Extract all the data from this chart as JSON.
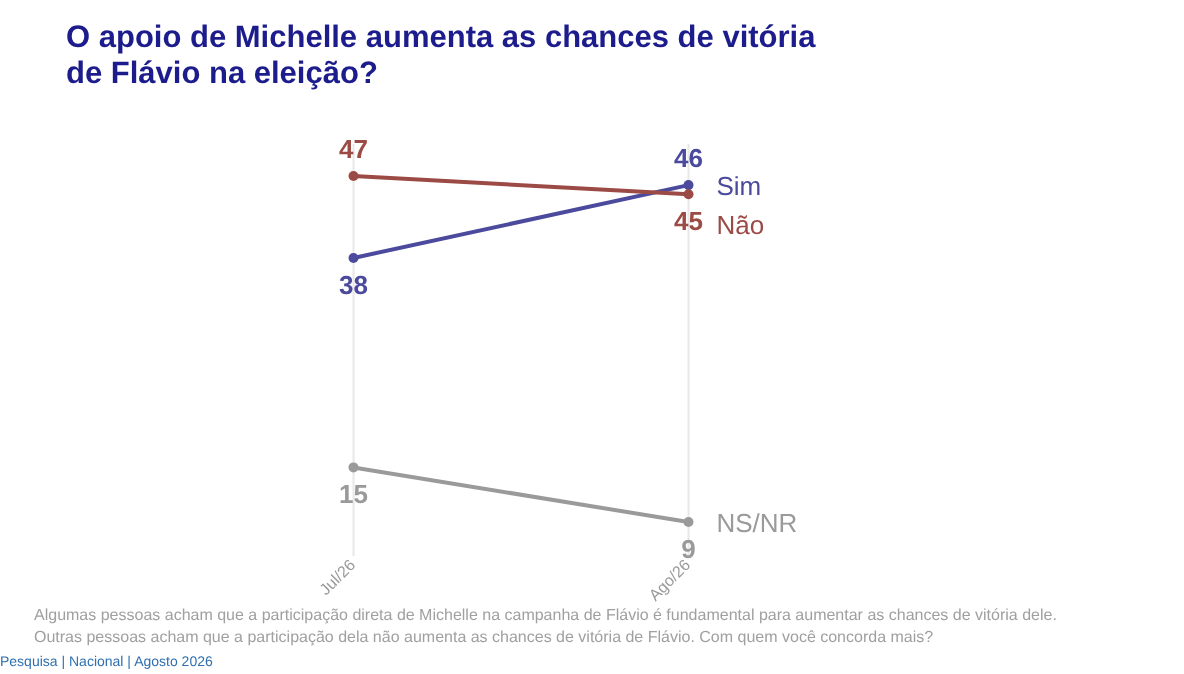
{
  "chart_data": {
    "type": "line",
    "title": "O apoio de Michelle aumenta as chances de vitória de Flávio na eleição?",
    "categories": [
      "Jul/26",
      "Ago/26"
    ],
    "series": [
      {
        "name": "Sim",
        "color": "#4b4a9c",
        "values": [
          38,
          46
        ]
      },
      {
        "name": "Não",
        "color": "#9b4a45",
        "values": [
          47,
          45
        ]
      },
      {
        "name": "NS/NR",
        "color": "#9a9a9a",
        "values": [
          15,
          9
        ]
      }
    ],
    "data_labels": true,
    "grid": "x",
    "marker": "circle",
    "line_style": "solid",
    "annotations": [
      "Algumas pessoas acham que a participação direta de Michelle na campanha de Flávio é fundamental para aumentar as chances de vitória dele.",
      "Outras pessoas acham que a participação dela não aumenta as chances de vitória de Flávio. Com quem você concorda mais?",
      "Pesquisa | Nacional | Agosto 2026"
    ]
  }
}
